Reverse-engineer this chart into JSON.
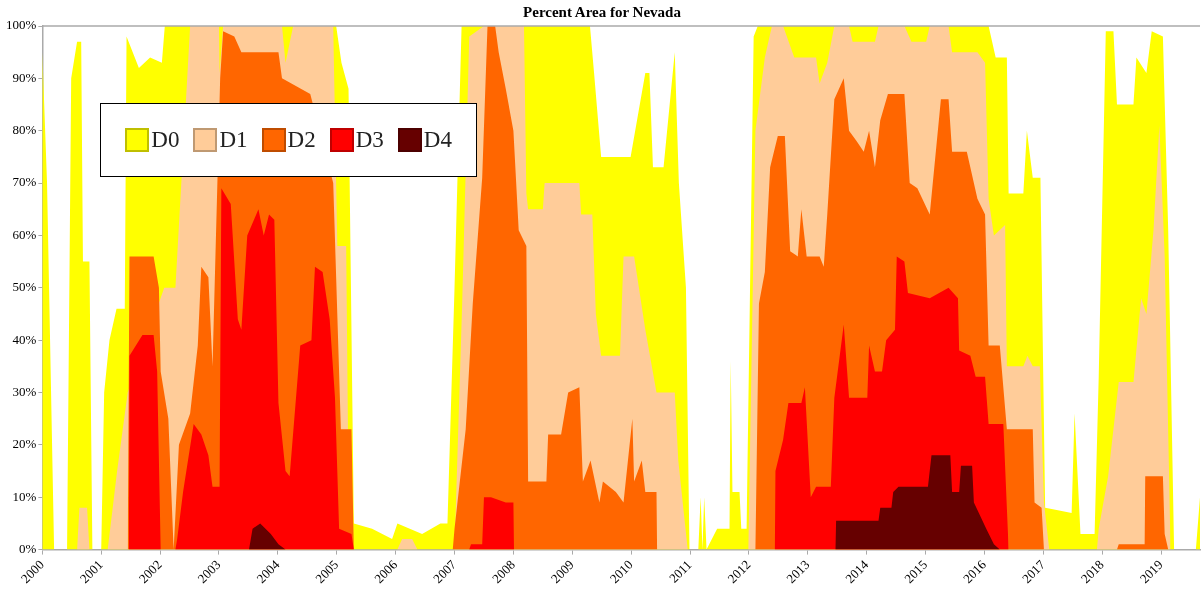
{
  "chart_data": {
    "type": "area",
    "title": "Percent Area for Nevada",
    "legend": "top left",
    "grid": false,
    "xlim": [
      2000,
      2019.66
    ],
    "xticks": [
      2000,
      2001,
      2002,
      2003,
      2004,
      2005,
      2006,
      2007,
      2008,
      2009,
      2010,
      2011,
      2012,
      2013,
      2014,
      2015,
      2016,
      2017,
      2018,
      2019
    ],
    "ylim": [
      0,
      100
    ],
    "yticks": [
      {
        "value": 0,
        "label": "0%"
      },
      {
        "value": 10,
        "label": "10%"
      },
      {
        "value": 20,
        "label": "20%"
      },
      {
        "value": 30,
        "label": "30%"
      },
      {
        "value": 40,
        "label": "40%"
      },
      {
        "value": 50,
        "label": "50%"
      },
      {
        "value": 60,
        "label": "60%"
      },
      {
        "value": 70,
        "label": "70%"
      },
      {
        "value": 80,
        "label": "80%"
      },
      {
        "value": 90,
        "label": "90%"
      },
      {
        "value": 100,
        "label": "100%"
      }
    ],
    "series": [
      {
        "name": "D0",
        "color": "#ffff00",
        "x": [
          2000.0,
          2000.08,
          2000.2,
          2000.42,
          2000.49,
          2000.59,
          2000.66,
          2000.69,
          2000.8,
          2000.85,
          2001.0,
          2001.05,
          2001.14,
          2001.26,
          2001.4,
          2001.43,
          2001.48,
          2001.64,
          2001.83,
          2002.03,
          2002.08,
          2004.99,
          2005.08,
          2005.2,
          2005.29,
          2005.6,
          2005.94,
          2006.03,
          2006.45,
          2006.76,
          2006.88,
          2007.0,
          2007.12,
          2009.3,
          2009.37,
          2009.49,
          2009.99,
          2010.24,
          2010.31,
          2010.37,
          2010.55,
          2010.74,
          2010.81,
          2010.93,
          2010.99,
          2011.14,
          2011.18,
          2011.21,
          2011.24,
          2011.28,
          2011.46,
          2011.67,
          2011.69,
          2011.72,
          2011.84,
          2011.87,
          2011.96,
          2012.08,
          2012.15,
          2016.07,
          2016.19,
          2016.38,
          2016.41,
          2016.66,
          2016.72,
          2016.82,
          2016.95,
          2017.03,
          2017.48,
          2017.53,
          2017.63,
          2017.87,
          2017.94,
          2018.06,
          2018.19,
          2018.25,
          2018.53,
          2018.58,
          2018.75,
          2018.84,
          2019.03,
          2019.12,
          2019.22,
          2019.59,
          2019.66
        ],
        "values": [
          95,
          70,
          0,
          0,
          90,
          97,
          97,
          55,
          55,
          0,
          0,
          30,
          40,
          46,
          46,
          98,
          null,
          92,
          94,
          93,
          100,
          100,
          93,
          88,
          5,
          4,
          2,
          5,
          3,
          5,
          5,
          50,
          100,
          100,
          91,
          75,
          75,
          91,
          91,
          73,
          73,
          95,
          70,
          50,
          0,
          0,
          10,
          0,
          10,
          0,
          4,
          4,
          36,
          11,
          11,
          4,
          4,
          98,
          100,
          100,
          94,
          94,
          68,
          68,
          80,
          71,
          71,
          8,
          7,
          26,
          3,
          3,
          33,
          99,
          99,
          85,
          85,
          94,
          91,
          99,
          98,
          61,
          0,
          0,
          10
        ]
      },
      {
        "name": "D1",
        "color": "#ffcc99",
        "x": [
          2000.59,
          2000.63,
          2000.76,
          2000.8,
          2001.11,
          2001.27,
          2001.45,
          2001.48,
          2002.01,
          2002.07,
          2002.26,
          2002.39,
          2002.51,
          2003.0,
          2003.01,
          2003.07,
          2004.07,
          2004.13,
          2004.26,
          2004.94,
          2005.01,
          2005.16,
          2005.19,
          2005.25,
          2006.03,
          2006.11,
          2006.28,
          2006.37,
          2007.0,
          2007.13,
          2007.25,
          2007.5,
          2008.18,
          2008.22,
          2008.25,
          2008.5,
          2008.53,
          2009.12,
          2009.15,
          2009.34,
          2009.4,
          2009.49,
          2009.81,
          2009.87,
          2010.05,
          2010.24,
          2010.43,
          2010.74,
          2010.8,
          2010.96,
          2011.99,
          2012.11,
          2012.27,
          2012.39,
          2012.58,
          2012.77,
          2013.14,
          2013.2,
          2013.33,
          2013.45,
          2013.7,
          2013.76,
          2014.14,
          2014.2,
          2014.64,
          2014.76,
          2015.01,
          2015.07,
          2015.39,
          2015.45,
          2015.88,
          2016.01,
          2016.07,
          2016.16,
          2016.35,
          2016.38,
          2016.66,
          2016.73,
          2016.82,
          2016.94,
          2017.01,
          2017.1,
          2017.91,
          2017.94,
          2018.1,
          2018.28,
          2018.53,
          2018.66,
          2018.75,
          2018.87,
          2018.97,
          2019.06,
          2019.16
        ],
        "values": [
          0,
          8,
          8,
          0,
          0,
          15,
          30,
          null,
          null,
          50,
          50,
          null,
          100,
          100,
          91,
          100,
          100,
          93,
          100,
          100,
          58,
          58,
          23,
          0,
          0,
          2,
          2,
          0,
          0,
          47,
          98,
          100,
          100,
          68,
          65,
          65,
          70,
          70,
          64,
          64,
          45,
          37,
          37,
          56,
          56,
          42,
          30,
          30,
          17,
          0,
          0,
          80,
          94,
          100,
          100,
          94,
          94,
          89,
          93,
          100,
          100,
          97,
          97,
          100,
          100,
          97,
          97,
          100,
          100,
          95,
          95,
          93,
          67,
          60,
          62,
          35,
          35,
          37,
          35,
          35,
          9,
          0,
          0,
          4,
          14,
          32,
          32,
          48,
          45,
          61,
          81,
          56,
          0
        ]
      },
      {
        "name": "D2",
        "color": "#ff6600",
        "x": [
          2001.45,
          2001.48,
          2001.89,
          2001.98,
          2002.01,
          2002.14,
          2002.23,
          2002.32,
          2002.51,
          2002.64,
          2002.7,
          2002.82,
          2002.89,
          2003.02,
          2003.07,
          2003.26,
          2003.38,
          2004.01,
          2004.07,
          2004.13,
          2004.48,
          2004.55,
          2004.6,
          2004.94,
          2005.07,
          2005.25,
          2005.29,
          2006.97,
          2007.0,
          2007.19,
          2007.31,
          2007.47,
          2007.56,
          2007.69,
          2007.75,
          2007.87,
          2008.0,
          2008.09,
          2008.22,
          2008.25,
          2008.56,
          2008.59,
          2008.81,
          2008.93,
          2009.12,
          2009.18,
          2009.31,
          2009.46,
          2009.52,
          2009.74,
          2009.87,
          2010.02,
          2010.05,
          2010.18,
          2010.24,
          2010.43,
          2010.44,
          2012.11,
          2012.17,
          2012.27,
          2012.36,
          2012.49,
          2012.61,
          2012.7,
          2012.83,
          2012.89,
          2012.98,
          2013.2,
          2013.27,
          2013.33,
          2013.45,
          2013.61,
          2013.7,
          2013.83,
          2013.95,
          2014.04,
          2014.14,
          2014.23,
          2014.36,
          2014.64,
          2014.73,
          2014.86,
          2015.07,
          2015.26,
          2015.39,
          2015.45,
          2015.7,
          2015.88,
          2016.01,
          2016.07,
          2016.26,
          2016.38,
          2016.82,
          2016.85,
          2016.97,
          2017.01,
          2018.25,
          2018.28,
          2018.72,
          2018.73,
          2019.03,
          2019.06,
          2019.12
        ],
        "values": [
          0,
          56,
          56,
          50,
          34,
          25,
          0,
          20,
          26,
          39,
          54,
          52,
          35,
          90,
          99,
          98,
          95,
          95,
          90,
          null,
          null,
          87,
          null,
          70,
          23,
          23,
          0,
          0,
          4,
          23,
          47,
          71,
          100,
          100,
          95,
          88,
          80,
          61,
          58,
          13,
          13,
          22,
          22,
          30,
          31,
          13,
          17,
          9,
          13,
          11,
          9,
          25,
          13,
          17,
          11,
          11,
          0,
          0,
          47,
          53,
          73,
          79,
          79,
          57,
          56,
          65,
          56,
          56,
          54,
          64,
          86,
          90,
          80,
          78,
          76,
          80,
          73,
          82,
          87,
          87,
          70,
          69,
          64,
          86,
          86,
          76,
          76,
          67,
          64,
          39,
          39,
          23,
          23,
          9,
          8,
          0,
          0,
          1,
          1,
          14,
          14,
          3,
          0
        ]
      },
      {
        "name": "D3",
        "color": "#ff0000",
        "x": [
          2001.47,
          2001.48,
          2001.7,
          2001.89,
          2001.95,
          2002.01,
          2002.26,
          2002.29,
          2002.39,
          2002.57,
          2002.7,
          2002.82,
          2002.89,
          2003.01,
          2003.04,
          2003.2,
          2003.32,
          2003.38,
          2003.48,
          2003.67,
          2003.76,
          2003.85,
          2003.94,
          2004.01,
          2004.13,
          2004.2,
          2004.38,
          2004.57,
          2004.63,
          2004.76,
          2004.88,
          2004.97,
          2005.04,
          2005.25,
          2005.29,
          2007.25,
          2007.28,
          2007.47,
          2007.5,
          2007.62,
          2007.87,
          2008.0,
          2008.01,
          2012.44,
          2012.45,
          2012.58,
          2012.67,
          2012.89,
          2012.95,
          2013.05,
          2013.14,
          2013.39,
          2013.45,
          2013.61,
          2013.7,
          2014.01,
          2014.04,
          2014.14,
          2014.26,
          2014.33,
          2014.48,
          2014.51,
          2014.64,
          2014.7,
          2015.07,
          2015.39,
          2015.55,
          2015.57,
          2015.76,
          2015.85,
          2016.01,
          2016.07,
          2016.32,
          2016.41
        ],
        "values": [
          0,
          37,
          41,
          41,
          34,
          0,
          0,
          2,
          11,
          24,
          22,
          18,
          12,
          12,
          69,
          66,
          44,
          42,
          60,
          65,
          60,
          64,
          63,
          28,
          15,
          14,
          39,
          40,
          54,
          53,
          44,
          29,
          4,
          3,
          0,
          0,
          1,
          1,
          10,
          10,
          9,
          9,
          0,
          0,
          15,
          21,
          28,
          28,
          31,
          10,
          12,
          12,
          29,
          43,
          29,
          29,
          39,
          34,
          34,
          40,
          42,
          56,
          55,
          49,
          48,
          50,
          48,
          38,
          37,
          33,
          33,
          24,
          24,
          0
        ]
      },
      {
        "name": "D4",
        "color": "#660000",
        "x": [
          2003.51,
          2003.57,
          2003.7,
          2003.88,
          2004.01,
          2004.13,
          2013.47,
          2013.48,
          2014.2,
          2014.23,
          2014.42,
          2014.45,
          2014.54,
          2015.04,
          2015.1,
          2015.42,
          2015.45,
          2015.57,
          2015.6,
          2015.79,
          2015.82,
          2016.03,
          2016.16,
          2016.26
        ],
        "values": [
          0,
          4,
          5,
          3,
          1,
          0,
          0,
          5.5,
          5.5,
          8,
          8,
          11,
          12,
          12,
          18,
          18,
          11,
          11,
          16,
          16,
          9,
          4,
          1,
          0
        ]
      }
    ]
  }
}
